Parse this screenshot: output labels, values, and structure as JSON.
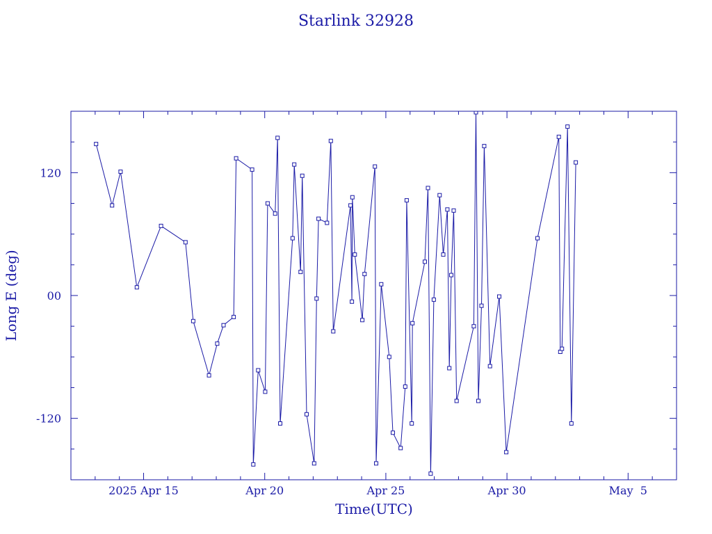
{
  "chart_data": {
    "type": "line",
    "title": "Starlink 32928",
    "xlabel": "Time(UTC)",
    "ylabel": "Long E (deg)",
    "color": "#1a1aa6",
    "x_unit": "days since 2025-04-10 00:00 UTC",
    "xlim": [
      2.0,
      27.0
    ],
    "ylim": [
      -180,
      180
    ],
    "x_ticks": [
      {
        "x": 5,
        "label": "2025 Apr 15"
      },
      {
        "x": 10,
        "label": "Apr 20"
      },
      {
        "x": 15,
        "label": "Apr 25"
      },
      {
        "x": 20,
        "label": "Apr 30"
      },
      {
        "x": 25,
        "label": "May  5"
      }
    ],
    "y_ticks": [
      {
        "y": 120,
        "label": "120"
      },
      {
        "y": 0,
        "label": "00"
      },
      {
        "y": -120,
        "label": "-120"
      }
    ],
    "points": [
      [
        3.04,
        148
      ],
      [
        3.7,
        88
      ],
      [
        4.05,
        121
      ],
      [
        4.72,
        8
      ],
      [
        5.72,
        68
      ],
      [
        6.73,
        52
      ],
      [
        7.05,
        -25
      ],
      [
        7.7,
        -78
      ],
      [
        8.04,
        -47
      ],
      [
        8.3,
        -29
      ],
      [
        8.72,
        -21
      ],
      [
        8.82,
        134
      ],
      [
        9.48,
        123
      ],
      [
        9.53,
        -165
      ],
      [
        9.73,
        -73
      ],
      [
        10.02,
        -94
      ],
      [
        10.12,
        90
      ],
      [
        10.43,
        80
      ],
      [
        10.53,
        154
      ],
      [
        10.64,
        -125
      ],
      [
        11.15,
        56
      ],
      [
        11.22,
        128
      ],
      [
        11.48,
        23
      ],
      [
        11.55,
        117
      ],
      [
        11.73,
        -116
      ],
      [
        12.04,
        -164
      ],
      [
        12.14,
        -3
      ],
      [
        12.22,
        75
      ],
      [
        12.57,
        71
      ],
      [
        12.73,
        151
      ],
      [
        12.83,
        -35
      ],
      [
        13.54,
        88
      ],
      [
        13.6,
        -6
      ],
      [
        13.62,
        96
      ],
      [
        13.72,
        40
      ],
      [
        14.03,
        -24
      ],
      [
        14.12,
        21
      ],
      [
        14.55,
        126
      ],
      [
        14.6,
        -164
      ],
      [
        14.81,
        11
      ],
      [
        15.14,
        -60
      ],
      [
        15.29,
        -134
      ],
      [
        15.61,
        -149
      ],
      [
        15.8,
        -89
      ],
      [
        15.86,
        93
      ],
      [
        16.07,
        -125
      ],
      [
        16.1,
        -27
      ],
      [
        16.61,
        33
      ],
      [
        16.74,
        105
      ],
      [
        16.85,
        -174
      ],
      [
        16.98,
        -4
      ],
      [
        17.22,
        98
      ],
      [
        17.37,
        40
      ],
      [
        17.54,
        84
      ],
      [
        17.62,
        -71
      ],
      [
        17.7,
        20
      ],
      [
        17.8,
        83
      ],
      [
        17.92,
        -103
      ],
      [
        18.63,
        -30
      ],
      [
        18.72,
        179
      ],
      [
        18.82,
        -103
      ],
      [
        18.95,
        -10
      ],
      [
        19.06,
        146
      ],
      [
        19.3,
        -69
      ],
      [
        19.68,
        -1
      ],
      [
        19.97,
        -153
      ],
      [
        21.26,
        56
      ],
      [
        22.14,
        155
      ],
      [
        22.2,
        -55
      ],
      [
        22.27,
        -52
      ],
      [
        22.5,
        165
      ],
      [
        22.66,
        -125
      ],
      [
        22.84,
        130
      ]
    ],
    "grid": false
  }
}
